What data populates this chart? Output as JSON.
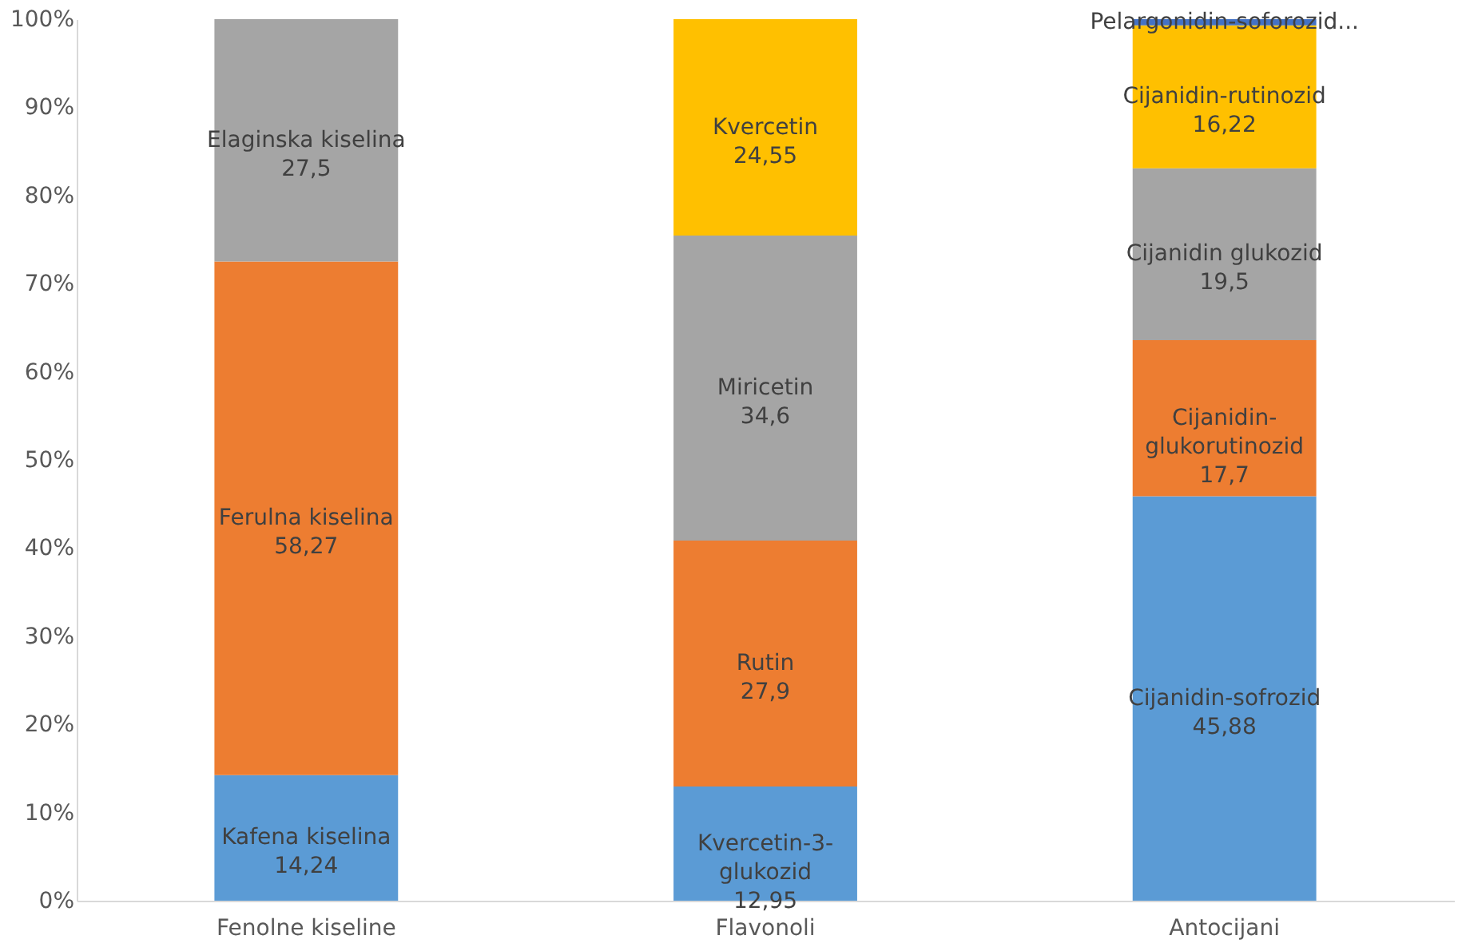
{
  "chart_data": {
    "type": "bar",
    "stacked": true,
    "categories": [
      "Fenolne kiseline",
      "Flavonoli",
      "Antocijani"
    ],
    "series": [
      {
        "color": "#5b9bd5",
        "values": [
          14.24,
          12.95,
          45.88
        ],
        "value_labels": [
          "Kafena kiselina\n14,24",
          "Kvercetin-3-\nglukozid\n12,95",
          "Cijanidin-sofrozid\n45,88"
        ]
      },
      {
        "color": "#ed7d31",
        "values": [
          58.27,
          27.9,
          17.7
        ],
        "value_labels": [
          "Ferulna kiselina\n58,27",
          "Rutin\n27,9",
          "Cijanidin-\nglukorutinozid\n17,7"
        ]
      },
      {
        "color": "#a5a5a5",
        "values": [
          27.5,
          34.6,
          19.5
        ],
        "value_labels": [
          "Elaginska kiselina\n27,5",
          "Miricetin\n34,6",
          "Cijanidin glukozid\n19,5"
        ]
      },
      {
        "color": "#ffc000",
        "values": [
          null,
          24.55,
          16.22
        ],
        "value_labels": [
          null,
          "Kvercetin\n24,55",
          "Cijanidin-rutinozid\n16,22"
        ]
      },
      {
        "color": "#4472c4",
        "values": [
          null,
          null,
          0.7
        ],
        "value_labels": [
          null,
          null,
          "Pelargonidin-soforozid..."
        ]
      }
    ],
    "ylim": [
      0,
      100
    ],
    "yticks": [
      {
        "value": 0,
        "label": "0%"
      },
      {
        "value": 10,
        "label": "10%"
      },
      {
        "value": 20,
        "label": "20%"
      },
      {
        "value": 30,
        "label": "30%"
      },
      {
        "value": 40,
        "label": "40%"
      },
      {
        "value": 50,
        "label": "50%"
      },
      {
        "value": 60,
        "label": "60%"
      },
      {
        "value": 70,
        "label": "70%"
      },
      {
        "value": 80,
        "label": "80%"
      },
      {
        "value": 90,
        "label": "90%"
      },
      {
        "value": 100,
        "label": "100%"
      }
    ],
    "grid": false
  }
}
